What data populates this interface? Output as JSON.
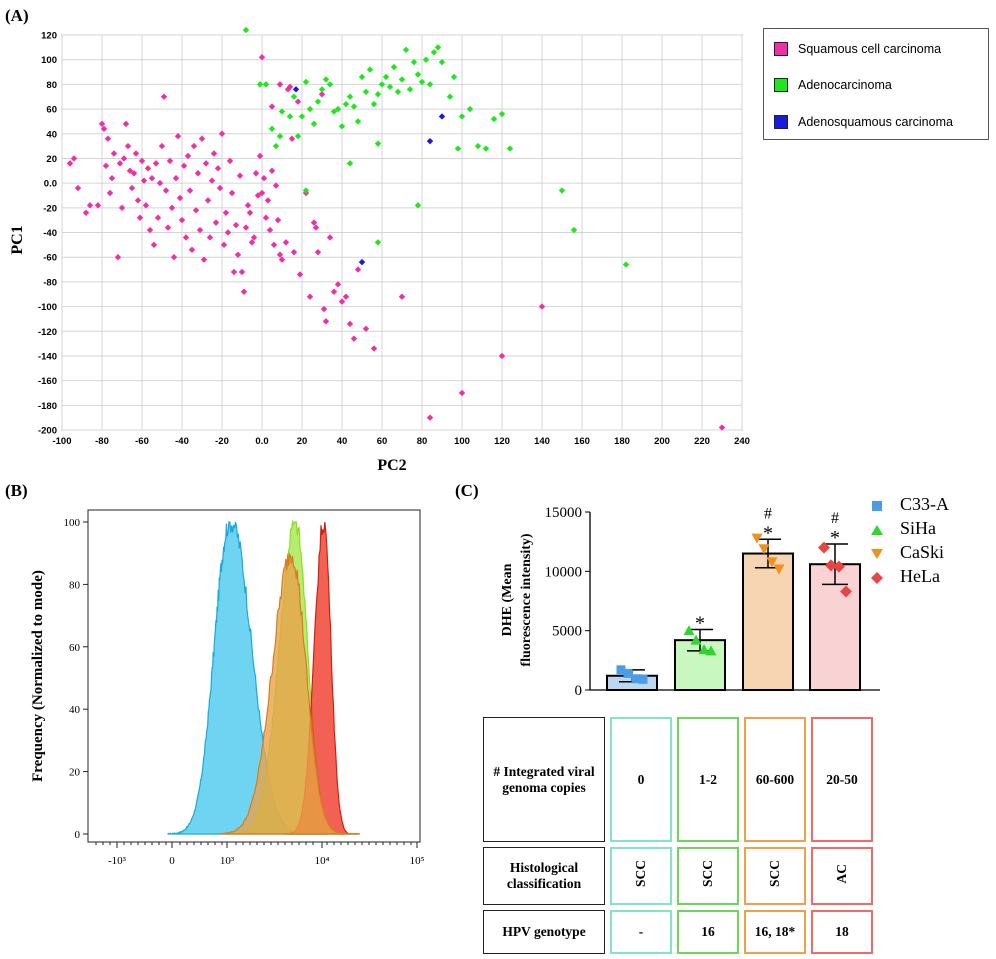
{
  "panels": {
    "a": "(A)",
    "b": "(B)",
    "c": "(C)"
  },
  "chart_data": [
    {
      "panel": "A",
      "type": "scatter",
      "xlabel": "PC2",
      "ylabel": "PC1",
      "xlim": [
        -100,
        240
      ],
      "ylim": [
        -200,
        120
      ],
      "xticks": [
        -100,
        -80,
        -60,
        -40,
        -20,
        0,
        20,
        40,
        60,
        80,
        100,
        120,
        140,
        160,
        180,
        200,
        220,
        240
      ],
      "xtick_labels": [
        "-100",
        "-80",
        "-60",
        "-40",
        "-20",
        "0.0",
        "20",
        "40",
        "60",
        "80",
        "100",
        "120",
        "140",
        "160",
        "180",
        "200",
        "220",
        "240"
      ],
      "yticks": [
        120,
        100,
        80,
        60,
        40,
        20,
        0,
        -20,
        -40,
        -60,
        -80,
        -100,
        -120,
        -140,
        -160,
        -180,
        -200
      ],
      "ytick_labels": [
        "120",
        "100",
        "80",
        "60",
        "40",
        "20",
        "0.0",
        "-20",
        "-40",
        "-60",
        "-80",
        "-100",
        "-120",
        "-140",
        "-160",
        "-180",
        "-200"
      ],
      "grid": true,
      "legend_position": "top-right",
      "series": [
        {
          "name": "Squamous cell carcinoma",
          "color": "#ee2fa6",
          "points": [
            [
              -96,
              16
            ],
            [
              -94,
              20
            ],
            [
              -92,
              -4
            ],
            [
              -88,
              -24
            ],
            [
              -86,
              -18
            ],
            [
              -82,
              -18
            ],
            [
              -80,
              48
            ],
            [
              -79,
              44
            ],
            [
              -78,
              14
            ],
            [
              -77,
              36
            ],
            [
              -76,
              -8
            ],
            [
              -75,
              4
            ],
            [
              -74,
              24
            ],
            [
              -72,
              -60
            ],
            [
              -71,
              16
            ],
            [
              -70,
              -20
            ],
            [
              -69,
              20
            ],
            [
              -68,
              48
            ],
            [
              -67,
              30
            ],
            [
              -66,
              10
            ],
            [
              -65,
              -4
            ],
            [
              -64,
              8
            ],
            [
              -63,
              24
            ],
            [
              -62,
              -14
            ],
            [
              -61,
              -28
            ],
            [
              -60,
              18
            ],
            [
              -59,
              2
            ],
            [
              -58,
              -18
            ],
            [
              -57,
              12
            ],
            [
              -56,
              -38
            ],
            [
              -55,
              4
            ],
            [
              -54,
              -50
            ],
            [
              -53,
              16
            ],
            [
              -52,
              -28
            ],
            [
              -51,
              0
            ],
            [
              -50,
              30
            ],
            [
              -49,
              70
            ],
            [
              -48,
              -6
            ],
            [
              -47,
              -36
            ],
            [
              -46,
              18
            ],
            [
              -45,
              -20
            ],
            [
              -44,
              -60
            ],
            [
              -43,
              4
            ],
            [
              -42,
              38
            ],
            [
              -41,
              -12
            ],
            [
              -40,
              -30
            ],
            [
              -39,
              14
            ],
            [
              -38,
              -44
            ],
            [
              -37,
              22
            ],
            [
              -36,
              -6
            ],
            [
              -35,
              -54
            ],
            [
              -34,
              30
            ],
            [
              -33,
              -22
            ],
            [
              -32,
              8
            ],
            [
              -31,
              -38
            ],
            [
              -30,
              36
            ],
            [
              -29,
              -62
            ],
            [
              -28,
              16
            ],
            [
              -27,
              -14
            ],
            [
              -26,
              -44
            ],
            [
              -25,
              2
            ],
            [
              -24,
              24
            ],
            [
              -23,
              -32
            ],
            [
              -22,
              12
            ],
            [
              -21,
              -4
            ],
            [
              -20,
              40
            ],
            [
              -19,
              -50
            ],
            [
              -18,
              -24
            ],
            [
              -17,
              -40
            ],
            [
              -16,
              18
            ],
            [
              -15,
              -8
            ],
            [
              -14,
              -72
            ],
            [
              -13,
              -34
            ],
            [
              -12,
              -58
            ],
            [
              -11,
              6
            ],
            [
              -10,
              -72
            ],
            [
              -9,
              -88
            ],
            [
              -8,
              -36
            ],
            [
              -7,
              -18
            ],
            [
              -6,
              -24
            ],
            [
              -5,
              -48
            ],
            [
              -4,
              -44
            ],
            [
              -3,
              8
            ],
            [
              -2,
              -10
            ],
            [
              -1,
              22
            ],
            [
              0,
              -8
            ],
            [
              1,
              4
            ],
            [
              2,
              -28
            ],
            [
              3,
              -14
            ],
            [
              4,
              -38
            ],
            [
              5,
              10
            ],
            [
              6,
              -50
            ],
            [
              7,
              -2
            ],
            [
              8,
              -30
            ],
            [
              9,
              -58
            ],
            [
              10,
              -62
            ],
            [
              12,
              -48
            ],
            [
              13,
              76
            ],
            [
              14,
              78
            ],
            [
              15,
              36
            ],
            [
              16,
              -56
            ],
            [
              18,
              66
            ],
            [
              19,
              -74
            ],
            [
              22,
              -8
            ],
            [
              24,
              -92
            ],
            [
              26,
              -32
            ],
            [
              27,
              -36
            ],
            [
              28,
              -56
            ],
            [
              30,
              72
            ],
            [
              31,
              -102
            ],
            [
              32,
              -112
            ],
            [
              34,
              -44
            ],
            [
              36,
              -88
            ],
            [
              38,
              -82
            ],
            [
              40,
              -96
            ],
            [
              42,
              -92
            ],
            [
              44,
              -114
            ],
            [
              46,
              -126
            ],
            [
              48,
              -70
            ],
            [
              52,
              -118
            ],
            [
              56,
              -134
            ],
            [
              70,
              -92
            ],
            [
              84,
              -190
            ],
            [
              100,
              -170
            ],
            [
              120,
              -140
            ],
            [
              140,
              -100
            ],
            [
              230,
              -198
            ],
            [
              0,
              102
            ],
            [
              5,
              62
            ],
            [
              9,
              80
            ]
          ]
        },
        {
          "name": "Adenocarcinoma",
          "color": "#1de81d",
          "points": [
            [
              -8,
              124
            ],
            [
              -1,
              80
            ],
            [
              2,
              80
            ],
            [
              5,
              44
            ],
            [
              7,
              30
            ],
            [
              9,
              38
            ],
            [
              10,
              58
            ],
            [
              14,
              54
            ],
            [
              16,
              70
            ],
            [
              18,
              38
            ],
            [
              20,
              54
            ],
            [
              22,
              82
            ],
            [
              24,
              60
            ],
            [
              26,
              48
            ],
            [
              28,
              66
            ],
            [
              30,
              76
            ],
            [
              32,
              84
            ],
            [
              34,
              80
            ],
            [
              36,
              58
            ],
            [
              38,
              60
            ],
            [
              40,
              46
            ],
            [
              42,
              64
            ],
            [
              44,
              70
            ],
            [
              46,
              62
            ],
            [
              48,
              50
            ],
            [
              50,
              86
            ],
            [
              52,
              74
            ],
            [
              54,
              92
            ],
            [
              56,
              64
            ],
            [
              58,
              72
            ],
            [
              60,
              80
            ],
            [
              62,
              86
            ],
            [
              64,
              78
            ],
            [
              66,
              94
            ],
            [
              68,
              74
            ],
            [
              70,
              84
            ],
            [
              72,
              108
            ],
            [
              74,
              76
            ],
            [
              76,
              98
            ],
            [
              78,
              88
            ],
            [
              80,
              82
            ],
            [
              82,
              100
            ],
            [
              84,
              80
            ],
            [
              86,
              106
            ],
            [
              88,
              110
            ],
            [
              90,
              98
            ],
            [
              94,
              70
            ],
            [
              96,
              86
            ],
            [
              98,
              28
            ],
            [
              100,
              54
            ],
            [
              104,
              60
            ],
            [
              108,
              30
            ],
            [
              112,
              28
            ],
            [
              116,
              52
            ],
            [
              120,
              56
            ],
            [
              124,
              28
            ],
            [
              150,
              -6
            ],
            [
              156,
              -38
            ],
            [
              182,
              -66
            ],
            [
              22,
              -6
            ],
            [
              58,
              -48
            ],
            [
              78,
              -18
            ],
            [
              44,
              16
            ],
            [
              58,
              32
            ]
          ]
        },
        {
          "name": "Adenosquamous carcinoma",
          "color": "#1a1adc",
          "points": [
            [
              17,
              76
            ],
            [
              50,
              -64
            ],
            [
              84,
              34
            ],
            [
              90,
              54
            ]
          ]
        }
      ]
    },
    {
      "panel": "B",
      "type": "area",
      "title": "",
      "xlabel": "",
      "ylabel": "Frequency  (Normalized to mode)",
      "xscale": "biexponential (log)",
      "xtick_labels": [
        "-10³",
        "0",
        "10³",
        "10⁴",
        "10⁵"
      ],
      "ytick_labels": [
        "0",
        "20",
        "40",
        "60",
        "80",
        "100"
      ],
      "ylim": [
        0,
        100
      ],
      "series": [
        {
          "name": "C33-A",
          "color": "#47c8ee",
          "peak_log10": 3.05,
          "peak": 100
        },
        {
          "name": "SiHa",
          "color": "#9be53a",
          "peak_log10": 3.72,
          "peak": 100
        },
        {
          "name": "CaSki",
          "color": "#e9a34a",
          "peak_log10": 3.68,
          "peak": 90
        },
        {
          "name": "HeLa",
          "color": "#ef3a28",
          "peak_log10": 4.02,
          "peak": 100
        }
      ]
    },
    {
      "panel": "C",
      "type": "bar",
      "ylabel": "DHE (Mean fluorescence intensity)",
      "ylabel_lines": [
        "DHE (Mean",
        "fluorescence intensity)"
      ],
      "ylim": [
        0,
        15000
      ],
      "ytick_labels": [
        "0",
        "5000",
        "10000",
        "15000"
      ],
      "categories": [
        "C33-A",
        "SiHa",
        "CaSki",
        "HeLa"
      ],
      "values": [
        1200,
        4200,
        11500,
        10600
      ],
      "error": [
        500,
        900,
        1200,
        1700
      ],
      "annotations": [
        "",
        "*",
        "#\n*",
        "#\n*"
      ],
      "legend_position": "right",
      "series": [
        {
          "name": "C33-A",
          "marker": "square",
          "color": "#4c9be8",
          "fill": "#bcd7f2",
          "points": [
            1700,
            1400,
            950,
            900
          ]
        },
        {
          "name": "SiHa",
          "marker": "triangle-up",
          "color": "#2ed62e",
          "fill": "#c8f7c0",
          "points": [
            5000,
            4200,
            3400,
            3300
          ]
        },
        {
          "name": "CaSki",
          "marker": "triangle-down",
          "color": "#f0901e",
          "fill": "#f7d5b3",
          "points": [
            12800,
            11900,
            10800,
            10200
          ]
        },
        {
          "name": "HeLa",
          "marker": "diamond",
          "color": "#e84545",
          "fill": "#f9d3d3",
          "points": [
            12000,
            10500,
            10400,
            8300
          ]
        }
      ]
    }
  ],
  "table": {
    "rows": [
      {
        "header": "# Integrated viral genoma copies",
        "cells": [
          "0",
          "1-2",
          "60-600",
          "20-50"
        ]
      },
      {
        "header": "Histological classification",
        "cells": [
          "SCC",
          "SCC",
          "SCC",
          "AC"
        ]
      },
      {
        "header": "HPV genotype",
        "cells": [
          "-",
          "16",
          "16, 18*",
          "18"
        ]
      }
    ]
  }
}
